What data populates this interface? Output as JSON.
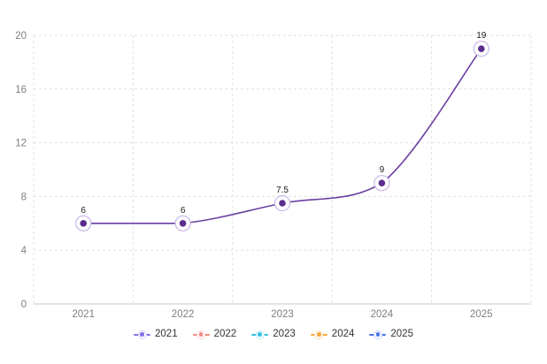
{
  "chart_data": {
    "type": "line",
    "smooth": true,
    "categories": [
      "2021",
      "2022",
      "2023",
      "2024",
      "2025"
    ],
    "series": [
      {
        "name": "2021",
        "values": [
          6,
          6,
          7.5,
          9,
          19
        ],
        "point_labels": [
          "6",
          "6",
          "7.5",
          "9",
          "19"
        ],
        "line_color": "#6b3fa0",
        "point_color": "#5b2d8e",
        "halo_color": "#c8b7e8"
      }
    ],
    "ylim": [
      0,
      20
    ],
    "yticks": [
      "0",
      "4",
      "8",
      "12",
      "16",
      "20"
    ],
    "grid": true,
    "grid_color": "#e0e0e0",
    "axis_line_color": "#c9c9c9",
    "axis_label_color": "#7f7f7f",
    "value_label_color": "#1c1c1c",
    "legend": {
      "position": "bottom",
      "items": [
        {
          "label": "2021",
          "color": "#8273e8"
        },
        {
          "label": "2022",
          "color": "#f2897d"
        },
        {
          "label": "2023",
          "color": "#35c3e5"
        },
        {
          "label": "2024",
          "color": "#f7a83d"
        },
        {
          "label": "2025",
          "color": "#4a77e8"
        }
      ]
    }
  }
}
